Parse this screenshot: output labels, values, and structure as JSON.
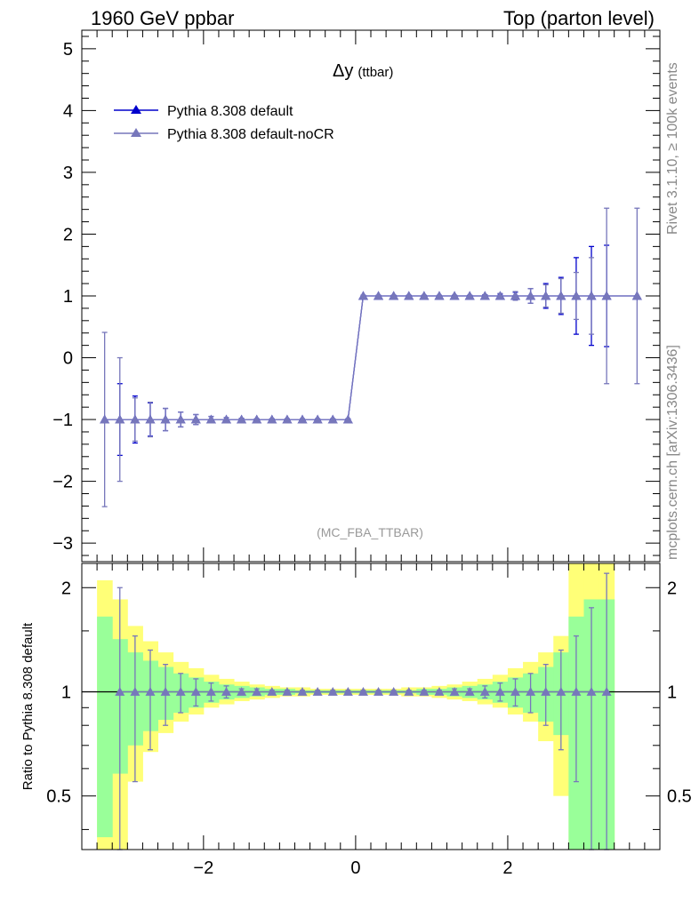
{
  "header": {
    "left": "1960 GeV ppbar",
    "right": "Top (parton level)"
  },
  "side_labels": {
    "rivet": "Rivet 3.1.10, ≥ 100k events",
    "mcplots": "mcplots.cern.ch [arXiv:1306.3436]"
  },
  "chart_data": [
    {
      "panel": "main",
      "type": "line",
      "title": "Δy",
      "title_sub": "(ttbar)",
      "analysis_label": "(MC_FBA_TTBAR)",
      "ylim": [
        -3.3,
        5.3
      ],
      "xlim": [
        -3.6,
        4.0
      ],
      "y_ticks": [
        "5",
        "4",
        "3",
        "2",
        "1",
        "0",
        "−1",
        "−2",
        "−3"
      ],
      "y_tick_values": [
        5,
        4,
        3,
        2,
        1,
        0,
        -1,
        -2,
        -3
      ],
      "x": [
        -3.3,
        -3.1,
        -2.9,
        -2.7,
        -2.5,
        -2.3,
        -2.1,
        -1.9,
        -1.7,
        -1.5,
        -1.3,
        -1.1,
        -0.9,
        -0.7,
        -0.5,
        -0.3,
        -0.1,
        0.1,
        0.3,
        0.5,
        0.7,
        0.9,
        1.1,
        1.3,
        1.5,
        1.7,
        1.9,
        2.1,
        2.3,
        2.5,
        2.7,
        2.9,
        3.1,
        3.3,
        3.7
      ],
      "legend_position": "top-left",
      "series": [
        {
          "name": "Pythia 8.308 default",
          "color": "#0000cc",
          "y": [
            -1,
            -1,
            -1,
            -1,
            -1,
            -1,
            -1,
            -1,
            -1,
            -1,
            -1,
            -1,
            -1,
            -1,
            -1,
            -1,
            -1,
            1,
            1,
            1,
            1,
            1,
            1,
            1,
            1,
            1,
            1,
            1,
            1,
            1,
            1,
            1,
            1,
            1,
            1
          ],
          "yerr": [
            0,
            0.58,
            0.38,
            0.27,
            0.18,
            0.12,
            0.08,
            0.05,
            0.03,
            0.02,
            0.01,
            0.01,
            0.01,
            0.01,
            0.01,
            0.01,
            0.01,
            0.01,
            0.01,
            0.01,
            0.01,
            0.01,
            0.01,
            0.01,
            0.01,
            0.02,
            0.03,
            0.06,
            0.12,
            0.2,
            0.3,
            0.62,
            0.8,
            0.82,
            0
          ]
        },
        {
          "name": "Pythia 8.308 default-noCR",
          "color": "#7777bb",
          "y": [
            -1,
            -1,
            -1,
            -1,
            -1,
            -1,
            -1,
            -1,
            -1,
            -1,
            -1,
            -1,
            -1,
            -1,
            -1,
            -1,
            -1,
            1,
            1,
            1,
            1,
            1,
            1,
            1,
            1,
            1,
            1,
            1,
            1,
            1,
            1,
            1,
            1,
            1,
            1
          ],
          "yerr": [
            1.41,
            1.0,
            0.35,
            0.28,
            0.18,
            0.12,
            0.08,
            0.05,
            0.03,
            0.02,
            0.01,
            0.01,
            0.01,
            0.01,
            0.01,
            0.01,
            0.01,
            0.01,
            0.01,
            0.01,
            0.01,
            0.01,
            0.01,
            0.01,
            0.01,
            0.02,
            0.04,
            0.07,
            0.12,
            0.18,
            0.28,
            0.38,
            0.62,
            1.42,
            1.42
          ]
        }
      ]
    },
    {
      "panel": "ratio",
      "type": "line",
      "ylabel": "Ratio to Pythia 8.308 default",
      "ylim": [
        0.35,
        2.35
      ],
      "xlim": [
        -3.6,
        4.0
      ],
      "y_ticks": [
        "2",
        "1",
        "0.5"
      ],
      "y_tick_values": [
        2,
        1,
        0.5
      ],
      "x_ticks": [
        "−2",
        "0",
        "2"
      ],
      "x_tick_values": [
        -2,
        0,
        2
      ],
      "bands": {
        "x": [
          -3.3,
          -3.1,
          -2.9,
          -2.7,
          -2.5,
          -2.3,
          -2.1,
          -1.9,
          -1.7,
          -1.5,
          -1.3,
          -1.1,
          -0.9,
          -0.7,
          -0.5,
          -0.3,
          -0.1,
          0.1,
          0.3,
          0.5,
          0.7,
          0.9,
          1.1,
          1.3,
          1.5,
          1.7,
          1.9,
          2.1,
          2.3,
          2.5,
          2.7,
          2.9,
          3.1,
          3.3
        ],
        "green_lo": [
          0.38,
          0.58,
          0.7,
          0.77,
          0.83,
          0.87,
          0.9,
          0.93,
          0.95,
          0.96,
          0.97,
          0.98,
          0.98,
          0.99,
          0.99,
          0.99,
          0.99,
          0.99,
          0.99,
          0.99,
          0.99,
          0.98,
          0.98,
          0.97,
          0.96,
          0.95,
          0.93,
          0.9,
          0.87,
          0.82,
          0.75,
          0.35,
          0.35,
          0.35
        ],
        "green_hi": [
          1.65,
          1.42,
          1.3,
          1.23,
          1.18,
          1.13,
          1.1,
          1.07,
          1.05,
          1.04,
          1.03,
          1.02,
          1.02,
          1.01,
          1.01,
          1.01,
          1.01,
          1.01,
          1.01,
          1.01,
          1.01,
          1.02,
          1.02,
          1.03,
          1.04,
          1.05,
          1.07,
          1.1,
          1.13,
          1.18,
          1.3,
          1.65,
          1.85,
          1.85
        ],
        "yellow_lo": [
          0.35,
          0.35,
          0.55,
          0.67,
          0.76,
          0.82,
          0.86,
          0.9,
          0.92,
          0.94,
          0.95,
          0.96,
          0.97,
          0.97,
          0.98,
          0.98,
          0.98,
          0.98,
          0.98,
          0.98,
          0.97,
          0.97,
          0.96,
          0.95,
          0.94,
          0.92,
          0.9,
          0.86,
          0.82,
          0.72,
          0.5,
          0.35,
          0.35,
          0.35
        ],
        "yellow_hi": [
          2.1,
          1.85,
          1.55,
          1.4,
          1.3,
          1.22,
          1.17,
          1.12,
          1.09,
          1.07,
          1.05,
          1.04,
          1.03,
          1.03,
          1.02,
          1.02,
          1.02,
          1.02,
          1.02,
          1.02,
          1.03,
          1.03,
          1.04,
          1.05,
          1.07,
          1.09,
          1.12,
          1.17,
          1.22,
          1.3,
          1.45,
          2.35,
          2.35,
          2.35
        ]
      },
      "series": [
        {
          "name": "Pythia 8.308 default-noCR",
          "color": "#7777bb",
          "x": [
            -3.1,
            -2.9,
            -2.7,
            -2.5,
            -2.3,
            -2.1,
            -1.9,
            -1.7,
            -1.5,
            -1.3,
            -1.1,
            -0.9,
            -0.7,
            -0.5,
            -0.3,
            -0.1,
            0.1,
            0.3,
            0.5,
            0.7,
            0.9,
            1.1,
            1.3,
            1.5,
            1.7,
            1.9,
            2.1,
            2.3,
            2.5,
            2.7,
            2.9,
            3.1,
            3.3
          ],
          "y": [
            1,
            1,
            1,
            1,
            1,
            1,
            1,
            1,
            1,
            1,
            1,
            1,
            1,
            1,
            1,
            1,
            1,
            1,
            1,
            1,
            1,
            1,
            1,
            1,
            1,
            1,
            1,
            1,
            1,
            1,
            1,
            1,
            1
          ],
          "yerr": [
            1.0,
            0.45,
            0.32,
            0.2,
            0.13,
            0.09,
            0.06,
            0.04,
            0.02,
            0.02,
            0.01,
            0.01,
            0.01,
            0.01,
            0.01,
            0.01,
            0.01,
            0.01,
            0.01,
            0.01,
            0.01,
            0.01,
            0.02,
            0.02,
            0.04,
            0.06,
            0.09,
            0.13,
            0.2,
            0.32,
            0.45,
            0.75,
            1.2
          ]
        }
      ]
    }
  ]
}
